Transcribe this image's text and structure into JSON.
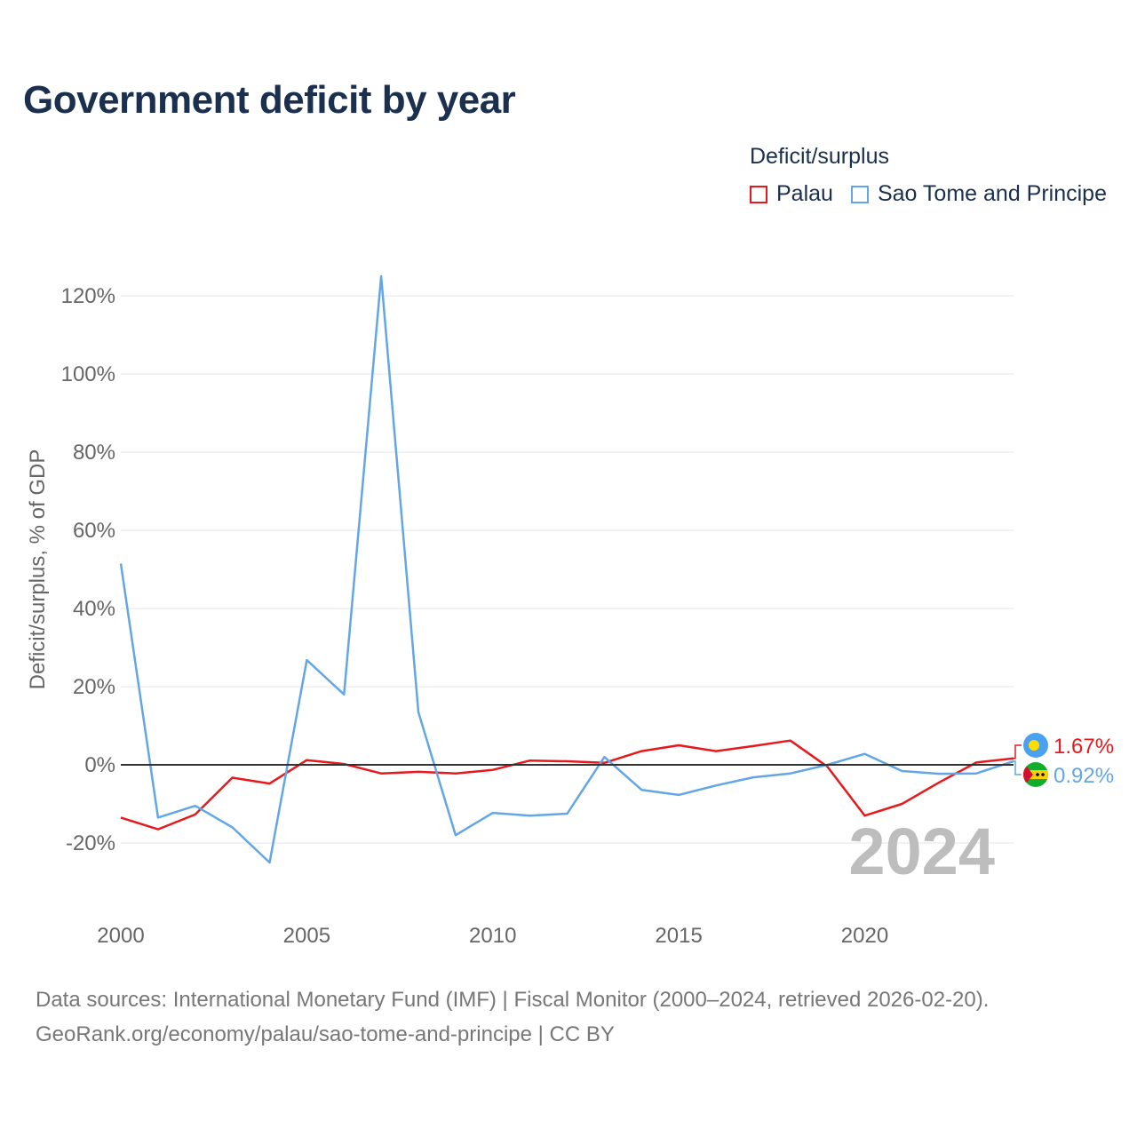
{
  "title": "Government deficit by year",
  "legend": {
    "title": "Deficit/surplus",
    "items": [
      {
        "label": "Palau",
        "color": "#e8191c"
      },
      {
        "label": "Sao Tome and Principe",
        "color": "#63a6e6"
      }
    ]
  },
  "year_watermark": "2024",
  "footer": {
    "line1": "Data sources: International Monetary Fund (IMF) | Fiscal Monitor (2000–2024, retrieved 2026-02-20).",
    "line2": "GeoRank.org/economy/palau/sao-tome-and-principe | CC BY"
  },
  "chart_data": {
    "type": "line",
    "title": "Government deficit by year",
    "xlabel": "",
    "ylabel": "Deficit/surplus, % of GDP",
    "x": [
      2000,
      2001,
      2002,
      2003,
      2004,
      2005,
      2006,
      2007,
      2008,
      2009,
      2010,
      2011,
      2012,
      2013,
      2014,
      2015,
      2016,
      2017,
      2018,
      2019,
      2020,
      2021,
      2022,
      2023,
      2024
    ],
    "xlim": [
      2000,
      2024
    ],
    "ylim": [
      -35,
      130
    ],
    "xticks": [
      2000,
      2005,
      2010,
      2015,
      2020
    ],
    "xtick_labels": [
      "2000",
      "2005",
      "2010",
      "2015",
      "2020"
    ],
    "yticks": [
      -20,
      0,
      20,
      40,
      60,
      80,
      100,
      120
    ],
    "ytick_labels": [
      "-20%",
      "0%",
      "20%",
      "40%",
      "60%",
      "80%",
      "100%",
      "120%"
    ],
    "grid": true,
    "legend_position": "top-right",
    "series": [
      {
        "name": "Palau",
        "color": "#e8191c",
        "end_label": "1.67%",
        "values": [
          -13.5,
          -16.5,
          -12.7,
          -3.3,
          -4.8,
          1.2,
          0.2,
          -2.2,
          -1.8,
          -2.2,
          -1.3,
          1.1,
          0.9,
          0.5,
          3.5,
          5.0,
          3.5,
          4.8,
          6.2,
          -0.5,
          -13.0,
          -10.0,
          -4.5,
          0.6,
          1.67
        ]
      },
      {
        "name": "Sao Tome and Principe",
        "color": "#63a6e6",
        "end_label": "0.92%",
        "values": [
          51.5,
          -13.5,
          -10.5,
          -16.0,
          -25.0,
          26.8,
          18.0,
          125.0,
          13.5,
          -18.0,
          -12.3,
          -13.0,
          -12.5,
          2.0,
          -6.4,
          -7.7,
          -5.3,
          -3.2,
          -2.2,
          0.0,
          2.8,
          -1.6,
          -2.3,
          -2.2,
          0.92
        ]
      }
    ]
  }
}
